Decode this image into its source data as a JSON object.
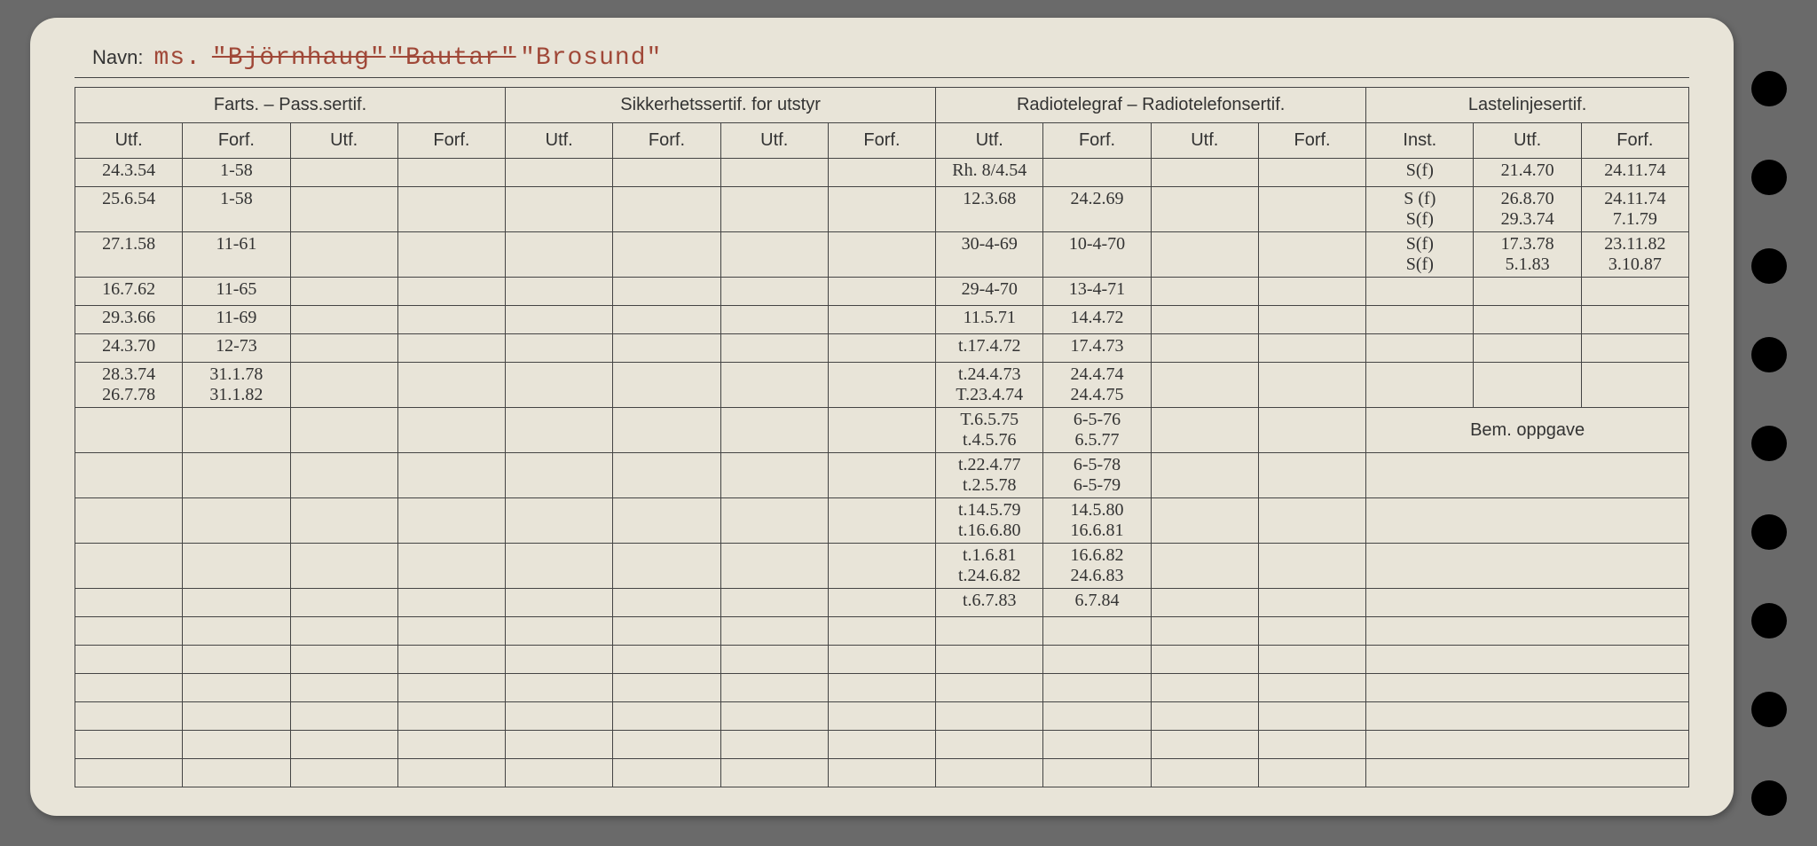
{
  "background_color": "#e8e4d8",
  "ink_color": "#2a3a7a",
  "typed_color": "#a04838",
  "line_color": "#444444",
  "navn_label": "Navn:",
  "ship_prefix": "ms.",
  "ship_names": [
    "\"Björnhaug\"",
    "\"Bautar\"",
    "\"Brosund\""
  ],
  "strikeout": [
    true,
    true,
    false
  ],
  "headers": {
    "farts": "Farts. – Pass.sertif.",
    "sikkerhet": "Sikkerhetssertif. for utstyr",
    "radio": "Radiotelegraf – Radiotelefonsertif.",
    "laste": "Lastelinjesertif.",
    "utf": "Utf.",
    "forf": "Forf.",
    "inst": "Inst.",
    "bem": "Bem. oppgave"
  },
  "rows": [
    {
      "farts_utf": "24.3.54",
      "farts_forf": "1-58",
      "radio_utf": "Rh. 8/4.54",
      "radio_forf": "",
      "laste_inst": "S(f)",
      "laste_utf": "21.4.70",
      "laste_forf": "24.11.74"
    },
    {
      "farts_utf": "25.6.54",
      "farts_forf": "1-58",
      "radio_utf": "12.3.68",
      "radio_forf": "24.2.69",
      "laste_inst": "S (f)\nS(f)",
      "laste_utf": "26.8.70\n29.3.74",
      "laste_forf": "24.11.74\n7.1.79"
    },
    {
      "farts_utf": "27.1.58",
      "farts_forf": "11-61",
      "radio_utf": "30-4-69",
      "radio_forf": "10-4-70",
      "laste_inst": "S(f)\nS(f)",
      "laste_utf": "17.3.78\n5.1.83",
      "laste_forf": "23.11.82\n3.10.87"
    },
    {
      "farts_utf": "16.7.62",
      "farts_forf": "11-65",
      "radio_utf": "29-4-70",
      "radio_forf": "13-4-71",
      "laste_inst": "",
      "laste_utf": "",
      "laste_forf": ""
    },
    {
      "farts_utf": "29.3.66",
      "farts_forf": "11-69",
      "radio_utf": "11.5.71",
      "radio_forf": "14.4.72",
      "laste_inst": "",
      "laste_utf": "",
      "laste_forf": ""
    },
    {
      "farts_utf": "24.3.70",
      "farts_forf": "12-73",
      "radio_utf": "t.17.4.72",
      "radio_forf": "17.4.73",
      "laste_inst": "",
      "laste_utf": "",
      "laste_forf": ""
    },
    {
      "farts_utf": "28.3.74\n26.7.78",
      "farts_forf": "31.1.78\n31.1.82",
      "radio_utf": "t.24.4.73\nT.23.4.74",
      "radio_forf": "24.4.74\n24.4.75",
      "laste_inst": "",
      "laste_utf": "",
      "laste_forf": ""
    },
    {
      "farts_utf": "",
      "farts_forf": "",
      "radio_utf": "T.6.5.75\nt.4.5.76",
      "radio_forf": "6-5-76\n6.5.77",
      "laste_inst": "",
      "laste_utf": "",
      "laste_forf": "",
      "bem": true
    },
    {
      "farts_utf": "",
      "farts_forf": "",
      "radio_utf": "t.22.4.77\nt.2.5.78",
      "radio_forf": "6-5-78\n6-5-79",
      "laste_inst": "",
      "laste_utf": "",
      "laste_forf": ""
    },
    {
      "farts_utf": "",
      "farts_forf": "",
      "radio_utf": "t.14.5.79\nt.16.6.80",
      "radio_forf": "14.5.80\n16.6.81",
      "laste_inst": "",
      "laste_utf": "",
      "laste_forf": ""
    },
    {
      "farts_utf": "",
      "farts_forf": "",
      "radio_utf": "t.1.6.81\nt.24.6.82",
      "radio_forf": "16.6.82\n24.6.83",
      "laste_inst": "",
      "laste_utf": "",
      "laste_forf": ""
    },
    {
      "farts_utf": "",
      "farts_forf": "",
      "radio_utf": "t.6.7.83",
      "radio_forf": "6.7.84",
      "laste_inst": "",
      "laste_utf": "",
      "laste_forf": ""
    }
  ],
  "trailing_blank_rows": 6
}
